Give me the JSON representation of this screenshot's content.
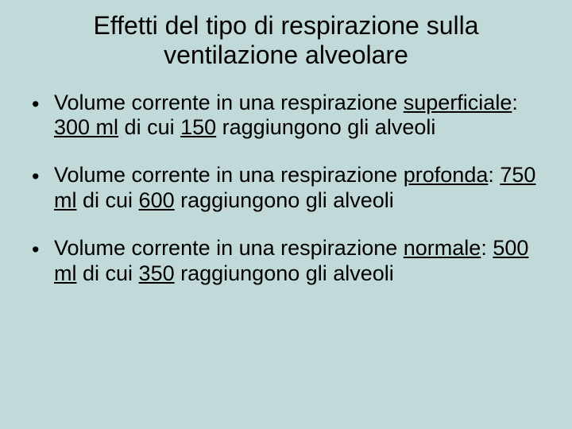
{
  "slide": {
    "background_color": "#c2d9da",
    "text_color": "#000000",
    "title": "Effetti del tipo di respirazione sulla ventilazione alveolare",
    "title_fontsize": 32,
    "body_fontsize": 27,
    "bullets": [
      {
        "pre": "Volume corrente in una respirazione ",
        "u1": "superficiale",
        "mid1": ": ",
        "u2": "300 ml",
        "mid2": " di cui ",
        "u3": "150",
        "post": " raggiungono gli alveoli"
      },
      {
        "pre": "Volume corrente in una respirazione ",
        "u1": "profonda",
        "mid1": ": ",
        "u2": "750 ml",
        "mid2": " di cui ",
        "u3": "600",
        "post": " raggiungono gli alveoli"
      },
      {
        "pre": "Volume corrente in una respirazione ",
        "u1": "normale",
        "mid1": ": ",
        "u2": "500 ml",
        "mid2": " di cui ",
        "u3": "350",
        "post": " raggiungono gli alveoli"
      }
    ]
  }
}
